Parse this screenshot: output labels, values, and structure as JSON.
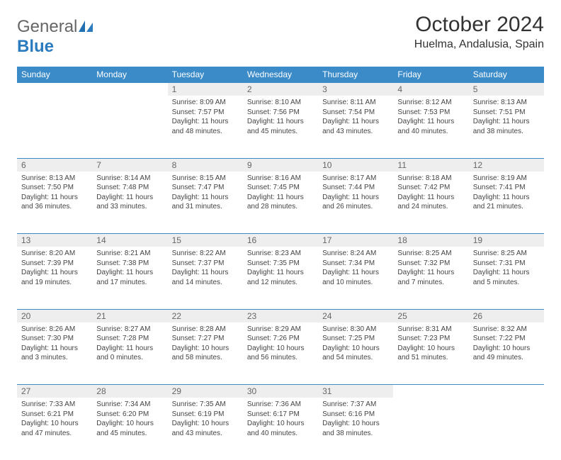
{
  "logo": {
    "general": "General",
    "blue": "Blue"
  },
  "title": "October 2024",
  "location": "Huelma, Andalusia, Spain",
  "colors": {
    "header_bg": "#3b8bc9",
    "header_text": "#ffffff",
    "daynum_bg": "#eeeeee",
    "daynum_text": "#666666",
    "border": "#3b8bc9",
    "logo_gray": "#666666",
    "logo_blue": "#2b7bbf"
  },
  "days": [
    "Sunday",
    "Monday",
    "Tuesday",
    "Wednesday",
    "Thursday",
    "Friday",
    "Saturday"
  ],
  "weeks": [
    [
      {
        "n": "",
        "sr": "",
        "ss": "",
        "dl": ""
      },
      {
        "n": "",
        "sr": "",
        "ss": "",
        "dl": ""
      },
      {
        "n": "1",
        "sr": "Sunrise: 8:09 AM",
        "ss": "Sunset: 7:57 PM",
        "dl": "Daylight: 11 hours and 48 minutes."
      },
      {
        "n": "2",
        "sr": "Sunrise: 8:10 AM",
        "ss": "Sunset: 7:56 PM",
        "dl": "Daylight: 11 hours and 45 minutes."
      },
      {
        "n": "3",
        "sr": "Sunrise: 8:11 AM",
        "ss": "Sunset: 7:54 PM",
        "dl": "Daylight: 11 hours and 43 minutes."
      },
      {
        "n": "4",
        "sr": "Sunrise: 8:12 AM",
        "ss": "Sunset: 7:53 PM",
        "dl": "Daylight: 11 hours and 40 minutes."
      },
      {
        "n": "5",
        "sr": "Sunrise: 8:13 AM",
        "ss": "Sunset: 7:51 PM",
        "dl": "Daylight: 11 hours and 38 minutes."
      }
    ],
    [
      {
        "n": "6",
        "sr": "Sunrise: 8:13 AM",
        "ss": "Sunset: 7:50 PM",
        "dl": "Daylight: 11 hours and 36 minutes."
      },
      {
        "n": "7",
        "sr": "Sunrise: 8:14 AM",
        "ss": "Sunset: 7:48 PM",
        "dl": "Daylight: 11 hours and 33 minutes."
      },
      {
        "n": "8",
        "sr": "Sunrise: 8:15 AM",
        "ss": "Sunset: 7:47 PM",
        "dl": "Daylight: 11 hours and 31 minutes."
      },
      {
        "n": "9",
        "sr": "Sunrise: 8:16 AM",
        "ss": "Sunset: 7:45 PM",
        "dl": "Daylight: 11 hours and 28 minutes."
      },
      {
        "n": "10",
        "sr": "Sunrise: 8:17 AM",
        "ss": "Sunset: 7:44 PM",
        "dl": "Daylight: 11 hours and 26 minutes."
      },
      {
        "n": "11",
        "sr": "Sunrise: 8:18 AM",
        "ss": "Sunset: 7:42 PM",
        "dl": "Daylight: 11 hours and 24 minutes."
      },
      {
        "n": "12",
        "sr": "Sunrise: 8:19 AM",
        "ss": "Sunset: 7:41 PM",
        "dl": "Daylight: 11 hours and 21 minutes."
      }
    ],
    [
      {
        "n": "13",
        "sr": "Sunrise: 8:20 AM",
        "ss": "Sunset: 7:39 PM",
        "dl": "Daylight: 11 hours and 19 minutes."
      },
      {
        "n": "14",
        "sr": "Sunrise: 8:21 AM",
        "ss": "Sunset: 7:38 PM",
        "dl": "Daylight: 11 hours and 17 minutes."
      },
      {
        "n": "15",
        "sr": "Sunrise: 8:22 AM",
        "ss": "Sunset: 7:37 PM",
        "dl": "Daylight: 11 hours and 14 minutes."
      },
      {
        "n": "16",
        "sr": "Sunrise: 8:23 AM",
        "ss": "Sunset: 7:35 PM",
        "dl": "Daylight: 11 hours and 12 minutes."
      },
      {
        "n": "17",
        "sr": "Sunrise: 8:24 AM",
        "ss": "Sunset: 7:34 PM",
        "dl": "Daylight: 11 hours and 10 minutes."
      },
      {
        "n": "18",
        "sr": "Sunrise: 8:25 AM",
        "ss": "Sunset: 7:32 PM",
        "dl": "Daylight: 11 hours and 7 minutes."
      },
      {
        "n": "19",
        "sr": "Sunrise: 8:25 AM",
        "ss": "Sunset: 7:31 PM",
        "dl": "Daylight: 11 hours and 5 minutes."
      }
    ],
    [
      {
        "n": "20",
        "sr": "Sunrise: 8:26 AM",
        "ss": "Sunset: 7:30 PM",
        "dl": "Daylight: 11 hours and 3 minutes."
      },
      {
        "n": "21",
        "sr": "Sunrise: 8:27 AM",
        "ss": "Sunset: 7:28 PM",
        "dl": "Daylight: 11 hours and 0 minutes."
      },
      {
        "n": "22",
        "sr": "Sunrise: 8:28 AM",
        "ss": "Sunset: 7:27 PM",
        "dl": "Daylight: 10 hours and 58 minutes."
      },
      {
        "n": "23",
        "sr": "Sunrise: 8:29 AM",
        "ss": "Sunset: 7:26 PM",
        "dl": "Daylight: 10 hours and 56 minutes."
      },
      {
        "n": "24",
        "sr": "Sunrise: 8:30 AM",
        "ss": "Sunset: 7:25 PM",
        "dl": "Daylight: 10 hours and 54 minutes."
      },
      {
        "n": "25",
        "sr": "Sunrise: 8:31 AM",
        "ss": "Sunset: 7:23 PM",
        "dl": "Daylight: 10 hours and 51 minutes."
      },
      {
        "n": "26",
        "sr": "Sunrise: 8:32 AM",
        "ss": "Sunset: 7:22 PM",
        "dl": "Daylight: 10 hours and 49 minutes."
      }
    ],
    [
      {
        "n": "27",
        "sr": "Sunrise: 7:33 AM",
        "ss": "Sunset: 6:21 PM",
        "dl": "Daylight: 10 hours and 47 minutes."
      },
      {
        "n": "28",
        "sr": "Sunrise: 7:34 AM",
        "ss": "Sunset: 6:20 PM",
        "dl": "Daylight: 10 hours and 45 minutes."
      },
      {
        "n": "29",
        "sr": "Sunrise: 7:35 AM",
        "ss": "Sunset: 6:19 PM",
        "dl": "Daylight: 10 hours and 43 minutes."
      },
      {
        "n": "30",
        "sr": "Sunrise: 7:36 AM",
        "ss": "Sunset: 6:17 PM",
        "dl": "Daylight: 10 hours and 40 minutes."
      },
      {
        "n": "31",
        "sr": "Sunrise: 7:37 AM",
        "ss": "Sunset: 6:16 PM",
        "dl": "Daylight: 10 hours and 38 minutes."
      },
      {
        "n": "",
        "sr": "",
        "ss": "",
        "dl": ""
      },
      {
        "n": "",
        "sr": "",
        "ss": "",
        "dl": ""
      }
    ]
  ]
}
